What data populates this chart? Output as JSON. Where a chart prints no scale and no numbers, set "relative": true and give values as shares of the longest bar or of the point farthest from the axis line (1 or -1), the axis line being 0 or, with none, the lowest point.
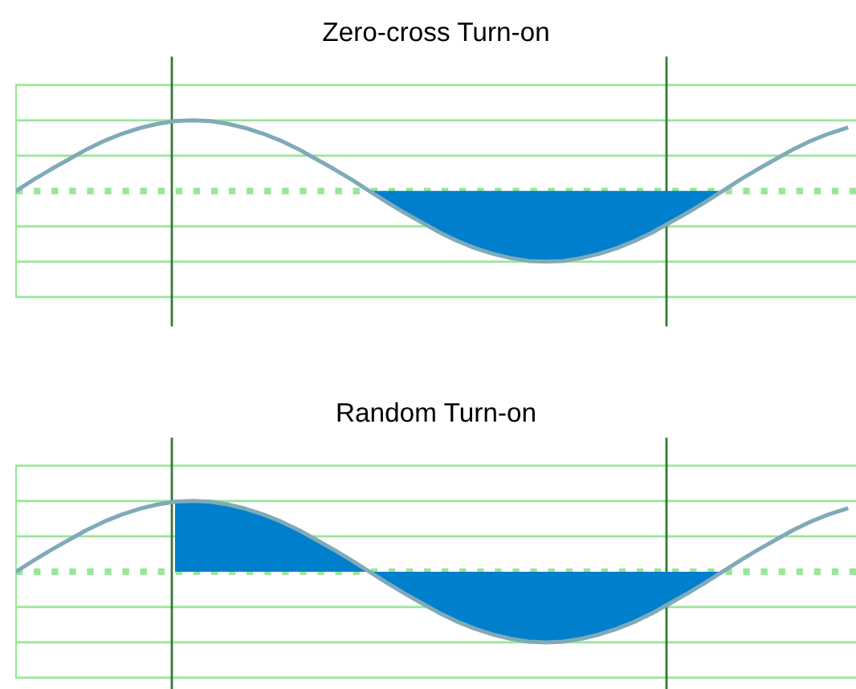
{
  "chart_data": [
    {
      "type": "line",
      "title": "Zero-cross Turn-on",
      "relative": true,
      "tick_labels": false,
      "categories": [
        null,
        null,
        null,
        null,
        null,
        null,
        null,
        null,
        null,
        null,
        null,
        null,
        null,
        null,
        null,
        null,
        null,
        null,
        null,
        null,
        null,
        null,
        null,
        null,
        null,
        null,
        null,
        null,
        null,
        null,
        null,
        null,
        null,
        null,
        null,
        null,
        null,
        null,
        null,
        null,
        null,
        null,
        null,
        null,
        null,
        null,
        null,
        null
      ],
      "series": [
        {
          "color": "#80aab8",
          "values": [
            0,
            0.16,
            0.31,
            0.45,
            0.59,
            0.71,
            0.81,
            0.89,
            0.95,
            0.99,
            1,
            0.99,
            0.95,
            0.89,
            0.81,
            0.71,
            0.59,
            0.45,
            0.31,
            0.16,
            0,
            -0.16,
            -0.31,
            -0.45,
            -0.59,
            -0.71,
            -0.81,
            -0.89,
            -0.95,
            -0.99,
            -1,
            -0.99,
            -0.95,
            -0.89,
            -0.81,
            -0.71,
            -0.59,
            -0.45,
            -0.31,
            -0.16,
            0,
            0.16,
            0.31,
            0.45,
            0.59,
            0.71,
            0.81,
            0.89
          ]
        },
        {
          "type": "area",
          "color": "#0080cc",
          "values": [
            null,
            null,
            null,
            null,
            null,
            null,
            null,
            null,
            null,
            null,
            null,
            null,
            null,
            null,
            null,
            null,
            null,
            null,
            null,
            null,
            0,
            -0.16,
            -0.31,
            -0.45,
            -0.59,
            -0.71,
            -0.81,
            -0.89,
            -0.95,
            -0.99,
            -1,
            -0.99,
            -0.95,
            -0.89,
            -0.81,
            -0.71,
            -0.59,
            -0.45,
            -0.31,
            -0.16,
            0,
            null,
            null,
            null,
            null,
            null,
            null,
            null
          ]
        }
      ],
      "ref_lines": [
        {
          "axis": "y",
          "value": 1.5,
          "color": "#99e699"
        },
        {
          "axis": "y",
          "value": 1,
          "color": "#99e699"
        },
        {
          "axis": "y",
          "value": 0.5,
          "color": "#99e699"
        },
        {
          "axis": "y",
          "value": -0.5,
          "color": "#99e699"
        },
        {
          "axis": "y",
          "value": -1,
          "color": "#99e699"
        },
        {
          "axis": "y",
          "value": -1.5,
          "color": "#99e699"
        },
        {
          "axis": "y",
          "value": 0,
          "color": "#99e699",
          "line_style": "dotted"
        }
      ]
    },
    {
      "type": "line",
      "title": "Random Turn-on",
      "relative": true,
      "tick_labels": false,
      "categories": [
        null,
        null,
        null,
        null,
        null,
        null,
        null,
        null,
        null,
        null,
        null,
        null,
        null,
        null,
        null,
        null,
        null,
        null,
        null,
        null,
        null,
        null,
        null,
        null,
        null,
        null,
        null,
        null,
        null,
        null,
        null,
        null,
        null,
        null,
        null,
        null,
        null,
        null,
        null,
        null,
        null,
        null,
        null,
        null,
        null,
        null,
        null,
        null
      ],
      "series": [
        {
          "color": "#80aab8",
          "values": [
            0,
            0.16,
            0.31,
            0.45,
            0.59,
            0.71,
            0.81,
            0.89,
            0.95,
            0.99,
            1,
            0.99,
            0.95,
            0.89,
            0.81,
            0.71,
            0.59,
            0.45,
            0.31,
            0.16,
            0,
            -0.16,
            -0.31,
            -0.45,
            -0.59,
            -0.71,
            -0.81,
            -0.89,
            -0.95,
            -0.99,
            -1,
            -0.99,
            -0.95,
            -0.89,
            -0.81,
            -0.71,
            -0.59,
            -0.45,
            -0.31,
            -0.16,
            0,
            0.16,
            0.31,
            0.45,
            0.59,
            0.71,
            0.81,
            0.89
          ]
        },
        {
          "type": "area",
          "color": "#0080cc",
          "values": [
            null,
            null,
            null,
            null,
            null,
            null,
            null,
            null,
            null,
            0.99,
            1,
            0.99,
            0.95,
            0.89,
            0.81,
            0.71,
            0.59,
            0.45,
            0.31,
            0.16,
            0,
            -0.16,
            -0.31,
            -0.45,
            -0.59,
            -0.71,
            -0.81,
            -0.89,
            -0.95,
            -0.99,
            -1,
            -0.99,
            -0.95,
            -0.89,
            -0.81,
            -0.71,
            -0.59,
            -0.45,
            -0.31,
            -0.16,
            0,
            null,
            null,
            null,
            null,
            null,
            null,
            null
          ]
        }
      ],
      "ref_lines": [
        {
          "axis": "y",
          "value": 1.5,
          "color": "#99e699"
        },
        {
          "axis": "y",
          "value": 1,
          "color": "#99e699"
        },
        {
          "axis": "y",
          "value": 0.5,
          "color": "#99e699"
        },
        {
          "axis": "y",
          "value": -0.5,
          "color": "#99e699"
        },
        {
          "axis": "y",
          "value": -1,
          "color": "#99e699"
        },
        {
          "axis": "y",
          "value": -1.5,
          "color": "#99e699"
        },
        {
          "axis": "y",
          "value": 0,
          "color": "#99e699",
          "line_style": "dotted"
        }
      ]
    }
  ]
}
